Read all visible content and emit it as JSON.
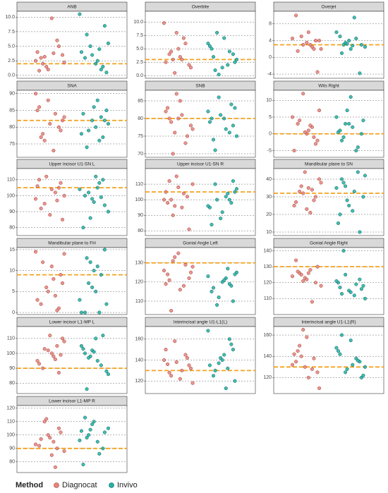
{
  "chart_data": [
    {
      "type": "strip",
      "title": "ANB",
      "ylim": [
        -0.5,
        11
      ],
      "yticks": [
        {
          "value": 0,
          "label": "0.0"
        },
        {
          "value": 2.5,
          "label": "2.5"
        },
        {
          "value": 5,
          "label": "5.0"
        },
        {
          "value": 7.5,
          "label": "7.5"
        },
        {
          "value": 10,
          "label": "10.0"
        }
      ],
      "reference": 2,
      "grid": true,
      "series": [
        {
          "name": "Diagnocat",
          "color": "#e8837a",
          "values": [
            2.5,
            3,
            1.5,
            9.8,
            6,
            3.5,
            4,
            2,
            1,
            3.8,
            5,
            2.2,
            0.8,
            3.2
          ]
        },
        {
          "name": "Invivo",
          "color": "#20b2a6",
          "values": [
            4.5,
            8.5,
            10.5,
            3,
            5,
            2,
            1,
            0.5,
            4,
            7,
            3.5,
            2.5,
            1.5,
            5.5
          ]
        }
      ]
    },
    {
      "type": "strip",
      "title": "Overbite",
      "ylim": [
        -0.5,
        12
      ],
      "yticks": [
        {
          "value": 0,
          "label": "0.0"
        },
        {
          "value": 2.5,
          "label": "2.5"
        },
        {
          "value": 5,
          "label": "5.0"
        },
        {
          "value": 7.5,
          "label": "7.5"
        },
        {
          "value": 10,
          "label": "10.0"
        }
      ],
      "reference": 3,
      "grid": true,
      "series": [
        {
          "name": "Diagnocat",
          "color": "#e8837a",
          "values": [
            3,
            5,
            7,
            2,
            9.8,
            4,
            0.5,
            3.5,
            6,
            1.5,
            2.5,
            4.5,
            8,
            3
          ]
        },
        {
          "name": "Invivo",
          "color": "#20b2a6",
          "values": [
            3,
            5,
            8,
            1.5,
            2,
            4,
            6,
            3.5,
            0.2,
            7,
            4.5,
            2.5,
            5.5,
            1
          ]
        }
      ]
    },
    {
      "type": "strip",
      "title": "Overjet",
      "ylim": [
        -5,
        11
      ],
      "yticks": [
        -4,
        0,
        4,
        8
      ],
      "reference": 3,
      "grid": true,
      "series": [
        {
          "name": "Diagnocat",
          "color": "#e8837a",
          "values": [
            3,
            4,
            2,
            10,
            5,
            3.5,
            2.5,
            -3.5,
            4.5,
            1.5,
            3,
            6,
            2,
            4
          ]
        },
        {
          "name": "Invivo",
          "color": "#20b2a6",
          "values": [
            3,
            4,
            9.5,
            -3.8,
            2.5,
            5,
            3.5,
            2,
            4.5,
            3,
            6,
            1,
            3.2,
            2.8
          ]
        }
      ]
    },
    {
      "type": "strip",
      "title": "SNA",
      "ylim": [
        71,
        91
      ],
      "yticks": [
        75,
        80,
        85,
        90
      ],
      "reference": 82,
      "grid": true,
      "series": [
        {
          "name": "Diagnocat",
          "color": "#e8837a",
          "values": [
            82,
            85,
            78,
            88,
            73,
            80,
            83,
            86,
            76,
            81,
            84,
            79,
            90,
            77
          ]
        },
        {
          "name": "Invivo",
          "color": "#20b2a6",
          "values": [
            80,
            83,
            85,
            78,
            74,
            82,
            88,
            77,
            81,
            84,
            79,
            86,
            76,
            82
          ]
        }
      ]
    },
    {
      "type": "strip",
      "title": "SNB",
      "ylim": [
        69,
        88
      ],
      "yticks": [
        70,
        75,
        80,
        85
      ],
      "reference": 80,
      "grid": true,
      "series": [
        {
          "name": "Diagnocat",
          "color": "#e8837a",
          "values": [
            80,
            76,
            85,
            73,
            78,
            82,
            79,
            87,
            81,
            75,
            77,
            83,
            70,
            80
          ]
        },
        {
          "name": "Invivo",
          "color": "#20b2a6",
          "values": [
            78,
            82,
            74,
            86,
            80,
            76,
            83,
            79,
            71,
            81,
            77,
            84,
            75,
            80
          ]
        }
      ]
    },
    {
      "type": "strip",
      "title": "Wits Right",
      "ylim": [
        -7,
        13
      ],
      "yticks": [
        -5,
        0,
        5,
        10
      ],
      "reference": 0,
      "grid": true,
      "series": [
        {
          "name": "Diagnocat",
          "color": "#e8837a",
          "values": [
            0,
            2,
            -2,
            5,
            3,
            12,
            1,
            -1,
            7,
            -5,
            4,
            0.5,
            2.5,
            -3
          ]
        },
        {
          "name": "Invivo",
          "color": "#20b2a6",
          "values": [
            1,
            3,
            11,
            -5,
            0,
            5,
            -2,
            7,
            2,
            -4,
            4,
            0.5,
            -1,
            3
          ]
        }
      ]
    },
    {
      "type": "strip",
      "title": "Upper incisor U1-SN L",
      "ylim": [
        75,
        117
      ],
      "yticks": [
        80,
        90,
        100,
        110
      ],
      "reference": 105,
      "grid": true,
      "series": [
        {
          "name": "Diagnocat",
          "color": "#e8837a",
          "values": [
            105,
            100,
            110,
            95,
            88,
            102,
            108,
            98,
            92,
            112,
            104,
            97,
            85,
            106
          ]
        },
        {
          "name": "Invivo",
          "color": "#20b2a6",
          "values": [
            98,
            105,
            110,
            90,
            80,
            102,
            96,
            108,
            94,
            104,
            100,
            86,
            112,
            99
          ]
        }
      ]
    },
    {
      "type": "strip",
      "title": "Upper incisor U1-SN R",
      "ylim": [
        77,
        120
      ],
      "yticks": [
        80,
        90,
        100,
        110
      ],
      "reference": 105,
      "grid": true,
      "series": [
        {
          "name": "Diagnocat",
          "color": "#e8837a",
          "values": [
            105,
            100,
            115,
            95,
            102,
            110,
            98,
            90,
            108,
            104,
            81,
            100,
            112,
            96
          ]
        },
        {
          "name": "Invivo",
          "color": "#20b2a6",
          "values": [
            100,
            105,
            95,
            110,
            88,
            102,
            98,
            107,
            84,
            100,
            92,
            104,
            112,
            96
          ]
        }
      ]
    },
    {
      "type": "strip",
      "title": "Mandibular plane to SN",
      "ylim": [
        8,
        46
      ],
      "yticks": [
        10,
        20,
        30,
        40
      ],
      "reference": 32,
      "grid": true,
      "series": [
        {
          "name": "Diagnocat",
          "color": "#e8837a",
          "values": [
            32,
            35,
            28,
            40,
            25,
            33,
            44,
            21,
            30,
            38,
            27,
            36,
            23,
            34
          ]
        },
        {
          "name": "Invivo",
          "color": "#20b2a6",
          "values": [
            35,
            40,
            28,
            22,
            44,
            30,
            15,
            38,
            25,
            33,
            10,
            42,
            20,
            36
          ]
        }
      ]
    },
    {
      "type": "strip",
      "title": "Mandibular plane to FH",
      "ylim": [
        -0.5,
        15.5
      ],
      "yticks": [
        0,
        5,
        10,
        15
      ],
      "reference": 9,
      "grid": true,
      "series": [
        {
          "name": "Diagnocat",
          "color": "#e8837a",
          "values": [
            4,
            9,
            14.5,
            2,
            6,
            11,
            0.5,
            7,
            3,
            12,
            5,
            8,
            1,
            14
          ]
        },
        {
          "name": "Invivo",
          "color": "#20b2a6",
          "values": [
            7,
            10,
            0,
            15,
            3,
            0,
            12,
            5,
            9,
            2,
            0,
            13,
            6,
            11
          ]
        }
      ]
    },
    {
      "type": "strip",
      "title": "Gonial Angle Left",
      "ylim": [
        103,
        138
      ],
      "yticks": [
        110,
        120,
        130
      ],
      "reference": 130,
      "grid": true,
      "series": [
        {
          "name": "Diagnocat",
          "color": "#e8837a",
          "values": [
            128,
            124,
            131,
            135,
            118,
            122,
            126,
            121,
            133,
            116,
            129,
            125,
            119,
            105
          ]
        },
        {
          "name": "Invivo",
          "color": "#20b2a6",
          "values": [
            122,
            118,
            125,
            115,
            108,
            120,
            127,
            110,
            123,
            117,
            112,
            121,
            119,
            124
          ]
        }
      ]
    },
    {
      "type": "strip",
      "title": "Gonial Angle Right",
      "ylim": [
        100,
        142
      ],
      "yticks": [
        110,
        120,
        130,
        140
      ],
      "reference": 130,
      "grid": true,
      "series": [
        {
          "name": "Diagnocat",
          "color": "#e8837a",
          "values": [
            126,
            123,
            128,
            120,
            118,
            134,
            125,
            122,
            108,
            130,
            124,
            127,
            121,
            126
          ]
        },
        {
          "name": "Invivo",
          "color": "#20b2a6",
          "values": [
            118,
            120,
            140,
            115,
            112,
            122,
            110,
            117,
            125,
            114,
            119,
            116,
            121,
            113
          ]
        }
      ]
    },
    {
      "type": "strip",
      "title": "Lower incisor L1-MP L",
      "ylim": [
        73,
        118
      ],
      "yticks": [
        80,
        90,
        100,
        110
      ],
      "reference": 90,
      "grid": true,
      "series": [
        {
          "name": "Diagnocat",
          "color": "#e8837a",
          "values": [
            100,
            105,
            110,
            95,
            90,
            102,
            98,
            87,
            108,
            93,
            103,
            112,
            96,
            99
          ]
        },
        {
          "name": "Invivo",
          "color": "#20b2a6",
          "values": [
            100,
            98,
            110,
            92,
            88,
            105,
            76,
            102,
            95,
            112,
            86,
            103,
            97,
            101
          ]
        }
      ]
    },
    {
      "type": "strip",
      "title": "Interincisal angle U1-L1(L)",
      "ylim": [
        108,
        172
      ],
      "yticks": [
        120,
        140,
        160
      ],
      "reference": 130,
      "grid": true,
      "series": [
        {
          "name": "Diagnocat",
          "color": "#e8837a",
          "values": [
            135,
            140,
            128,
            158,
            122,
            145,
            132,
            150,
            125,
            138,
            130,
            142,
            118,
            136
          ]
        },
        {
          "name": "Invivo",
          "color": "#20b2a6",
          "values": [
            140,
            132,
            150,
            168,
            125,
            137,
            145,
            160,
            120,
            135,
            130,
            142,
            113,
            155
          ]
        }
      ]
    },
    {
      "type": "strip",
      "title": "Interincisal angle U1-L1(R)",
      "ylim": [
        105,
        168
      ],
      "yticks": [
        120,
        140,
        160
      ],
      "reference": 130,
      "grid": true,
      "series": [
        {
          "name": "Diagnocat",
          "color": "#e8837a",
          "values": [
            135,
            140,
            158,
            128,
            125,
            132,
            145,
            165,
            120,
            138,
            110,
            142,
            150,
            130
          ]
        },
        {
          "name": "Invivo",
          "color": "#20b2a6",
          "values": [
            135,
            130,
            142,
            125,
            155,
            138,
            120,
            148,
            160,
            128,
            132,
            136,
            122,
            145
          ]
        }
      ]
    },
    {
      "type": "strip",
      "title": "Lower incisor L1-MP R",
      "ylim": [
        72,
        122
      ],
      "yticks": [
        80,
        90,
        100,
        110,
        120
      ],
      "reference": 90,
      "grid": true,
      "series": [
        {
          "name": "Diagnocat",
          "color": "#e8837a",
          "values": [
            100,
            95,
            105,
            88,
            92,
            110,
            98,
            76,
            102,
            93,
            97,
            112,
            85,
            90
          ]
        },
        {
          "name": "Invivo",
          "color": "#20b2a6",
          "values": [
            103,
            98,
            108,
            95,
            90,
            105,
            78,
            100,
            110,
            86,
            102,
            96,
            113,
            104
          ]
        }
      ]
    }
  ],
  "legend": {
    "title": "Method"
  }
}
